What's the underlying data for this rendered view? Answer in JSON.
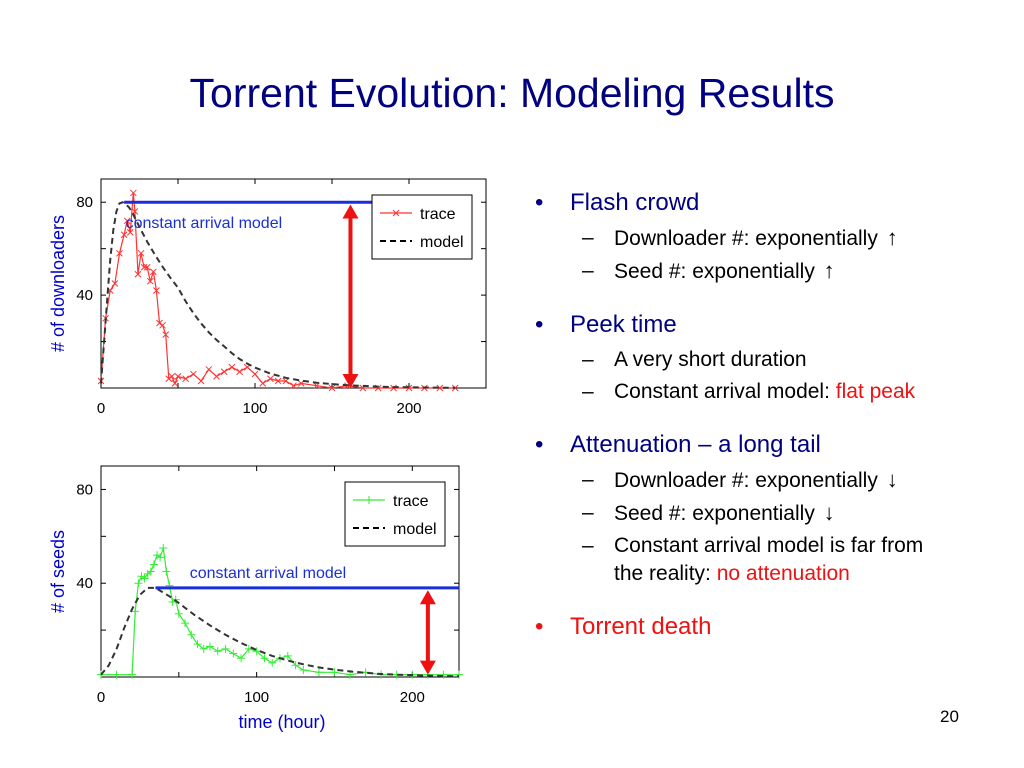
{
  "title": "Torrent Evolution: Modeling Results",
  "page_number": "20",
  "bullets": [
    {
      "text": "Flash crowd",
      "color": "#000080",
      "subs": [
        {
          "text": "Downloader #: exponentially",
          "arrow": "↑"
        },
        {
          "text": "Seed #: exponentially",
          "arrow": "↑"
        }
      ]
    },
    {
      "text": "Peek time",
      "color": "#000080",
      "subs": [
        {
          "text": "A very short duration"
        },
        {
          "text": "Constant arrival model:",
          "highlight": "flat peak"
        }
      ]
    },
    {
      "text": "Attenuation – a long tail",
      "color": "#000080",
      "subs": [
        {
          "text": "Downloader #: exponentially",
          "arrow": "↓"
        },
        {
          "text": "Seed #: exponentially",
          "arrow": "↓"
        },
        {
          "text": "Constant arrival model is far from",
          "text2": "the reality:",
          "highlight": "no attenuation"
        }
      ]
    },
    {
      "text": "Torrent death",
      "color": "#ee1111",
      "subs": []
    }
  ],
  "chart_data": [
    {
      "type": "line",
      "ylabel": "# of downloaders",
      "xlabel": "",
      "xlim": [
        0,
        250
      ],
      "ylim": [
        0,
        90
      ],
      "xticks": [
        0,
        100,
        200
      ],
      "yticks": [
        40,
        80
      ],
      "legend": {
        "position": "top-right",
        "entries": [
          "trace",
          "model"
        ]
      },
      "annotation": "constant arrival model",
      "constant_level": 80,
      "constant_range": [
        15,
        225
      ],
      "arrow_x": 162,
      "arrow_range": [
        0,
        79
      ],
      "series": [
        {
          "name": "trace",
          "color": "#ff3333",
          "marker": "x",
          "x": [
            0,
            3,
            6,
            9,
            12,
            15,
            17,
            19,
            21,
            22,
            24,
            26,
            28,
            30,
            32,
            34,
            36,
            38,
            40,
            42,
            44,
            46,
            48,
            50,
            55,
            60,
            65,
            70,
            75,
            80,
            85,
            90,
            95,
            100,
            105,
            110,
            115,
            120,
            125,
            130,
            140,
            150,
            160,
            170,
            180,
            190,
            200,
            210,
            220,
            230
          ],
          "y": [
            3,
            30,
            42,
            45,
            58,
            66,
            72,
            67,
            84,
            76,
            49,
            58,
            52,
            52,
            46,
            50,
            42,
            28,
            27,
            23,
            4,
            5,
            2,
            5,
            4,
            6,
            3,
            8,
            5,
            7,
            9,
            7,
            9,
            6,
            2,
            4,
            3,
            3,
            1,
            2,
            1,
            0,
            1,
            0,
            0,
            0,
            0,
            0,
            0,
            0
          ]
        },
        {
          "name": "model",
          "color": "#333333",
          "dash": true,
          "x": [
            0,
            2,
            4,
            6,
            8,
            10,
            12,
            14,
            16,
            18,
            20,
            25,
            30,
            35,
            40,
            45,
            50,
            55,
            60,
            65,
            70,
            75,
            80,
            85,
            90,
            95,
            100,
            110,
            120,
            130,
            140,
            150,
            160,
            170,
            180,
            190,
            200,
            210,
            220,
            230
          ],
          "y": [
            2,
            20,
            38,
            55,
            68,
            76,
            79.5,
            80,
            79,
            78,
            76,
            69.3,
            63,
            57.4,
            52.2,
            47.5,
            43.2,
            37.3,
            32.2,
            27.8,
            24,
            20.7,
            17.9,
            15,
            12.5,
            10.5,
            8.8,
            6.2,
            4.4,
            3.2,
            2.3,
            1.7,
            1.2,
            0.9,
            0.6,
            0.4,
            0.3,
            0.2,
            0.15,
            0.1
          ]
        }
      ]
    },
    {
      "type": "line",
      "ylabel": "# of seeds",
      "xlabel": "time (hour)",
      "xlim": [
        0,
        230
      ],
      "ylim": [
        0,
        90
      ],
      "xticks": [
        0,
        100,
        200
      ],
      "yticks": [
        40,
        80
      ],
      "legend": {
        "position": "top-right",
        "entries": [
          "trace",
          "model"
        ]
      },
      "annotation": "constant arrival model",
      "constant_level": 38,
      "constant_range": [
        35,
        230
      ],
      "arrow_x": 210,
      "arrow_range": [
        1,
        37
      ],
      "series": [
        {
          "name": "trace",
          "color": "#33ee33",
          "marker": "+",
          "x": [
            0,
            10,
            20,
            22,
            24,
            26,
            28,
            30,
            32,
            34,
            36,
            38,
            40,
            42,
            44,
            46,
            48,
            50,
            54,
            58,
            62,
            66,
            70,
            75,
            80,
            85,
            90,
            95,
            100,
            105,
            110,
            115,
            120,
            125,
            130,
            140,
            150,
            160,
            170,
            180,
            190,
            200,
            210,
            220,
            230
          ],
          "y": [
            1,
            1,
            1,
            28,
            40,
            43,
            42,
            44,
            45,
            48,
            52,
            51,
            55,
            45,
            39,
            32,
            33,
            27,
            23,
            18,
            14,
            12,
            13,
            11,
            12,
            10,
            8,
            12,
            11,
            8,
            6,
            8,
            9,
            5,
            3,
            2,
            2,
            1,
            2,
            1,
            1,
            1,
            1,
            1,
            1
          ]
        },
        {
          "name": "model",
          "color": "#333333",
          "dash": true,
          "x": [
            0,
            5,
            10,
            15,
            20,
            25,
            30,
            35,
            40,
            45,
            50,
            55,
            60,
            70,
            80,
            90,
            100,
            110,
            120,
            130,
            140,
            150,
            160,
            170,
            180,
            190,
            200,
            210,
            220,
            230
          ],
          "y": [
            1,
            5,
            12,
            21,
            29,
            35,
            38,
            38,
            36,
            34,
            31.5,
            29,
            26.5,
            22,
            18,
            14.5,
            11.5,
            9,
            7,
            5.4,
            4.1,
            3.1,
            2.4,
            1.8,
            1.3,
            1,
            0.8,
            0.6,
            0.4,
            0.3
          ]
        }
      ]
    }
  ]
}
